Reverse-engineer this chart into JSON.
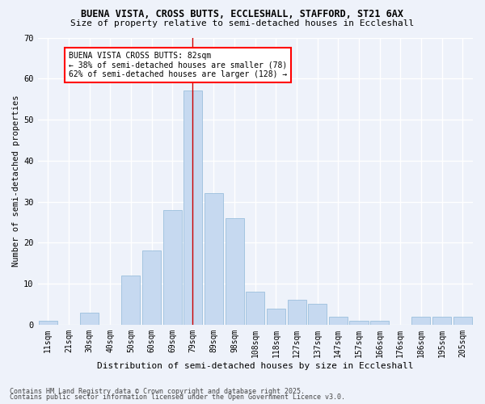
{
  "title1": "BUENA VISTA, CROSS BUTTS, ECCLESHALL, STAFFORD, ST21 6AX",
  "title2": "Size of property relative to semi-detached houses in Eccleshall",
  "xlabel": "Distribution of semi-detached houses by size in Eccleshall",
  "ylabel": "Number of semi-detached properties",
  "categories": [
    "11sqm",
    "21sqm",
    "30sqm",
    "40sqm",
    "50sqm",
    "60sqm",
    "69sqm",
    "79sqm",
    "89sqm",
    "98sqm",
    "108sqm",
    "118sqm",
    "127sqm",
    "137sqm",
    "147sqm",
    "157sqm",
    "166sqm",
    "176sqm",
    "186sqm",
    "195sqm",
    "205sqm"
  ],
  "values": [
    1,
    0,
    3,
    0,
    12,
    18,
    28,
    57,
    32,
    26,
    8,
    4,
    6,
    5,
    2,
    1,
    1,
    0,
    2,
    2,
    2
  ],
  "bar_color": "#c6d9f0",
  "bar_edge_color": "#8fb8d8",
  "highlight_index": 7,
  "pct_smaller": 38,
  "n_smaller": 78,
  "pct_larger": 62,
  "n_larger": 128,
  "annotation_line1": "BUENA VISTA CROSS BUTTS: 82sqm",
  "annotation_line2": "← 38% of semi-detached houses are smaller (78)",
  "annotation_line3": "62% of semi-detached houses are larger (128) →",
  "vline_color": "#cc0000",
  "ylim": [
    0,
    70
  ],
  "yticks": [
    0,
    10,
    20,
    30,
    40,
    50,
    60,
    70
  ],
  "footnote1": "Contains HM Land Registry data © Crown copyright and database right 2025.",
  "footnote2": "Contains public sector information licensed under the Open Government Licence v3.0.",
  "bg_color": "#eef2fa",
  "grid_color": "#ffffff",
  "title_fontsize": 8.5,
  "subtitle_fontsize": 8,
  "tick_fontsize": 7,
  "ylabel_fontsize": 7.5,
  "xlabel_fontsize": 8,
  "annot_fontsize": 7,
  "footnote_fontsize": 6
}
